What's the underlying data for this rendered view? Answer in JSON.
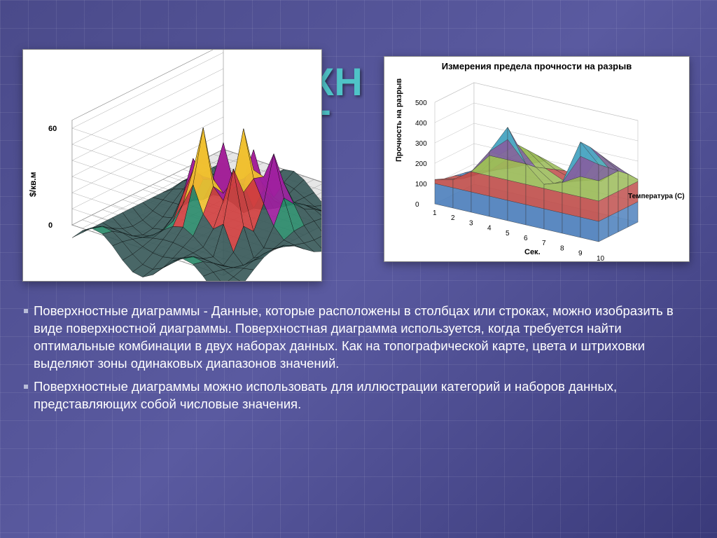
{
  "title_fragments": {
    "f1": "ХН",
    "f2": "Г"
  },
  "left_chart": {
    "type": "3d-surface",
    "zlabel": "$/кв.м",
    "z_ticks": [
      0,
      60
    ],
    "z_range": [
      -30,
      65
    ],
    "grid_dims": {
      "nx": 16,
      "ny": 16
    },
    "colors": {
      "floor": "#e6e6e6",
      "grid": "#888",
      "back": "#fff",
      "peaks": [
        "#00a0e0",
        "#00c040",
        "#f0e040",
        "#d0d0d0",
        "#a020a0",
        "#c02020",
        "#f09030",
        "#006080",
        "#8000a0"
      ]
    }
  },
  "right_chart": {
    "type": "3d-area-surface",
    "title": "Измерения предела прочности на разрыв",
    "ylabel": "Прочность на разрыв",
    "xlabel": "Сек.",
    "series_label": "Температура (C)",
    "x_ticks": [
      1,
      2,
      3,
      4,
      5,
      6,
      7,
      8,
      9,
      10
    ],
    "y_ticks": [
      0,
      100,
      200,
      300,
      400,
      500
    ],
    "y_range": [
      0,
      500
    ],
    "bands": [
      {
        "range": [
          0,
          100
        ],
        "color": "#4f81bd"
      },
      {
        "range": [
          100,
          200
        ],
        "color": "#c0504d"
      },
      {
        "range": [
          200,
          300
        ],
        "color": "#9bbb59"
      },
      {
        "range": [
          300,
          400
        ],
        "color": "#8064a2"
      },
      {
        "range": [
          400,
          500
        ],
        "color": "#4bacc6"
      }
    ],
    "floor_color": "#dce6f1",
    "grid_color": "#bfbfbf",
    "surface": {
      "rows": 5,
      "cols": 10,
      "z": [
        [
          120,
          140,
          200,
          320,
          460,
          300,
          220,
          250,
          470,
          380
        ],
        [
          100,
          120,
          180,
          280,
          350,
          260,
          200,
          230,
          420,
          340
        ],
        [
          90,
          110,
          160,
          240,
          300,
          230,
          190,
          210,
          360,
          300
        ],
        [
          80,
          100,
          140,
          200,
          250,
          200,
          170,
          190,
          300,
          260
        ],
        [
          70,
          90,
          120,
          160,
          200,
          170,
          150,
          160,
          240,
          210
        ]
      ]
    }
  },
  "paragraphs": [
    "Поверхностные диаграммы - Данные, которые расположены в столбцах или строках, можно изобразить в виде поверхностной диаграммы. Поверхностная диаграмма используется, когда требуется найти оптимальные комбинации в двух наборах данных. Как на топографической карте, цвета и штриховки выделяют зоны одинаковых диапазонов значений.",
    "Поверхностные диаграммы можно использовать для иллюстрации категорий и наборов данных, представляющих собой числовые значения."
  ],
  "text_color": "#ffffff",
  "text_fontsize": 18.5
}
